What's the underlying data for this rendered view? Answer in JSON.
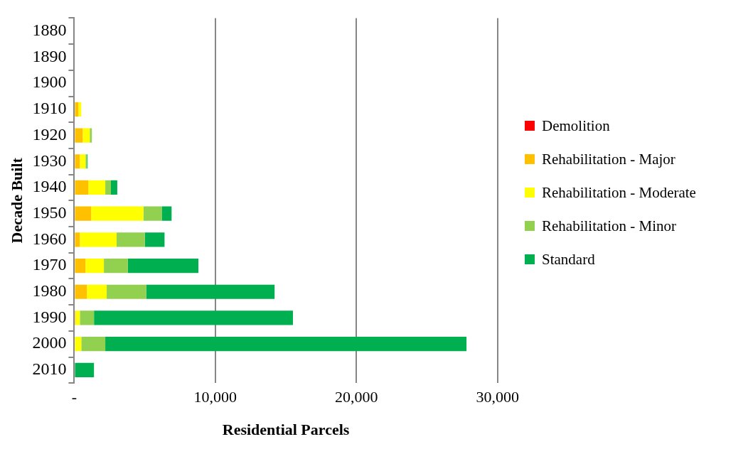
{
  "chart_data": {
    "type": "bar",
    "orientation": "horizontal",
    "stacked": true,
    "xlabel": "Residential Parcels",
    "ylabel": "Decade Built",
    "categories": [
      "1880",
      "1890",
      "1900",
      "1910",
      "1920",
      "1930",
      "1940",
      "1950",
      "1960",
      "1970",
      "1980",
      "1990",
      "2000",
      "2010"
    ],
    "series": [
      {
        "name": "Demolition",
        "color": "#ff0000",
        "values": [
          0,
          0,
          0,
          0,
          0,
          0,
          0,
          0,
          0,
          0,
          0,
          0,
          0,
          0
        ]
      },
      {
        "name": "Rehabilitation - Major",
        "color": "#ffc000",
        "values": [
          0,
          0,
          0,
          300,
          600,
          400,
          1000,
          1200,
          400,
          800,
          900,
          100,
          0,
          0
        ]
      },
      {
        "name": "Rehabilitation - Moderate",
        "color": "#ffff00",
        "values": [
          0,
          0,
          0,
          200,
          500,
          400,
          1200,
          3700,
          2600,
          1300,
          1400,
          300,
          500,
          0
        ]
      },
      {
        "name": "Rehabilitation - Minor",
        "color": "#92d050",
        "values": [
          0,
          0,
          0,
          0,
          150,
          100,
          400,
          1300,
          2000,
          1700,
          2800,
          1000,
          1700,
          0
        ]
      },
      {
        "name": "Standard",
        "color": "#00b050",
        "values": [
          0,
          0,
          0,
          0,
          0,
          50,
          450,
          700,
          1400,
          5000,
          9100,
          14100,
          25600,
          1400
        ]
      }
    ],
    "xlim": [
      0,
      30000
    ],
    "xticks": [
      {
        "value": 0,
        "label": "-"
      },
      {
        "value": 10000,
        "label": "10,000"
      },
      {
        "value": 20000,
        "label": "20,000"
      },
      {
        "value": 30000,
        "label": "30,000"
      }
    ],
    "grid": "x",
    "legend": "right"
  }
}
